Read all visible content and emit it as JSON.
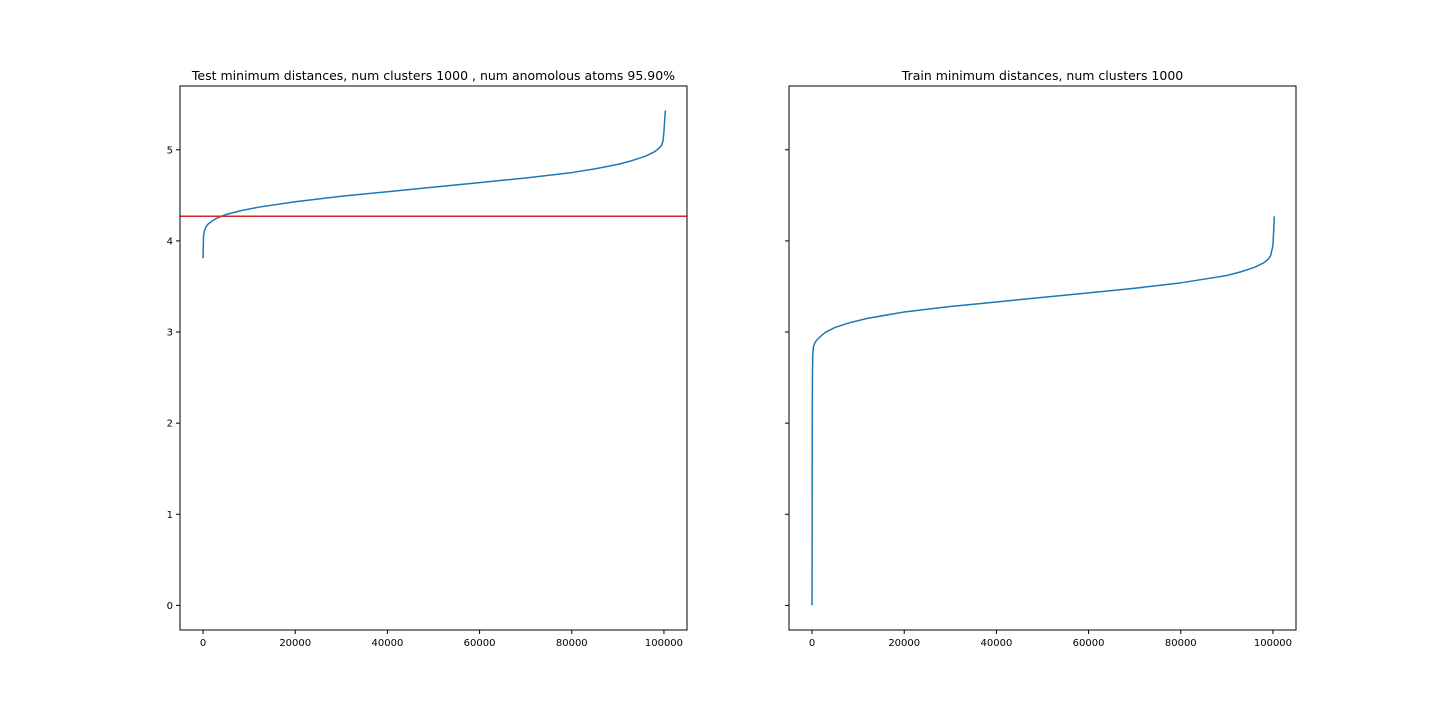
{
  "chart_data": [
    {
      "type": "line",
      "title": "Test minimum distances, num clusters 1000 , num anomolous atoms 95.90%",
      "xlabel": "",
      "ylabel": "",
      "xlim": [
        -5000,
        105000
      ],
      "ylim": [
        -0.27,
        5.7
      ],
      "xticks": [
        0,
        20000,
        40000,
        60000,
        80000,
        100000
      ],
      "xtick_labels": [
        "0",
        "20000",
        "40000",
        "60000",
        "80000",
        "100000"
      ],
      "yticks": [
        0,
        1,
        2,
        3,
        4,
        5
      ],
      "ytick_labels": [
        "0",
        "1",
        "2",
        "3",
        "4",
        "5"
      ],
      "show_ytick_labels": true,
      "grid": false,
      "series": [
        {
          "color": "#1f77b4",
          "x": [
            0,
            100,
            300,
            600,
            1000,
            2000,
            3000,
            5000,
            8000,
            12000,
            20000,
            30000,
            40000,
            50000,
            60000,
            70000,
            80000,
            85000,
            90000,
            93000,
            96000,
            98000,
            99000,
            99500,
            99800,
            100000,
            100300
          ],
          "y": [
            3.81,
            4.05,
            4.11,
            4.15,
            4.18,
            4.22,
            4.25,
            4.29,
            4.33,
            4.37,
            4.43,
            4.49,
            4.54,
            4.59,
            4.64,
            4.69,
            4.75,
            4.79,
            4.84,
            4.88,
            4.93,
            4.98,
            5.02,
            5.05,
            5.1,
            5.2,
            5.43
          ]
        }
      ],
      "hlines": [
        {
          "y": 4.27,
          "color": "#d62728"
        }
      ]
    },
    {
      "type": "line",
      "title": "Train minimum distances, num clusters 1000",
      "xlabel": "",
      "ylabel": "",
      "xlim": [
        -5000,
        105000
      ],
      "ylim": [
        -0.27,
        5.7
      ],
      "xticks": [
        0,
        20000,
        40000,
        60000,
        80000,
        100000
      ],
      "xtick_labels": [
        "0",
        "20000",
        "40000",
        "60000",
        "80000",
        "100000"
      ],
      "yticks": [
        0,
        1,
        2,
        3,
        4,
        5
      ],
      "ytick_labels": [],
      "show_ytick_labels": false,
      "grid": false,
      "series": [
        {
          "color": "#1f77b4",
          "x": [
            0,
            30,
            80,
            150,
            300,
            600,
            1000,
            2000,
            3000,
            5000,
            8000,
            12000,
            20000,
            30000,
            40000,
            50000,
            60000,
            70000,
            80000,
            85000,
            90000,
            93000,
            96000,
            98000,
            99000,
            99500,
            100000,
            100300
          ],
          "y": [
            0.0,
            1.5,
            2.5,
            2.75,
            2.84,
            2.88,
            2.91,
            2.96,
            3.0,
            3.05,
            3.1,
            3.15,
            3.22,
            3.28,
            3.33,
            3.38,
            3.43,
            3.48,
            3.54,
            3.58,
            3.62,
            3.66,
            3.71,
            3.76,
            3.8,
            3.84,
            3.95,
            4.27
          ]
        }
      ],
      "hlines": []
    }
  ]
}
